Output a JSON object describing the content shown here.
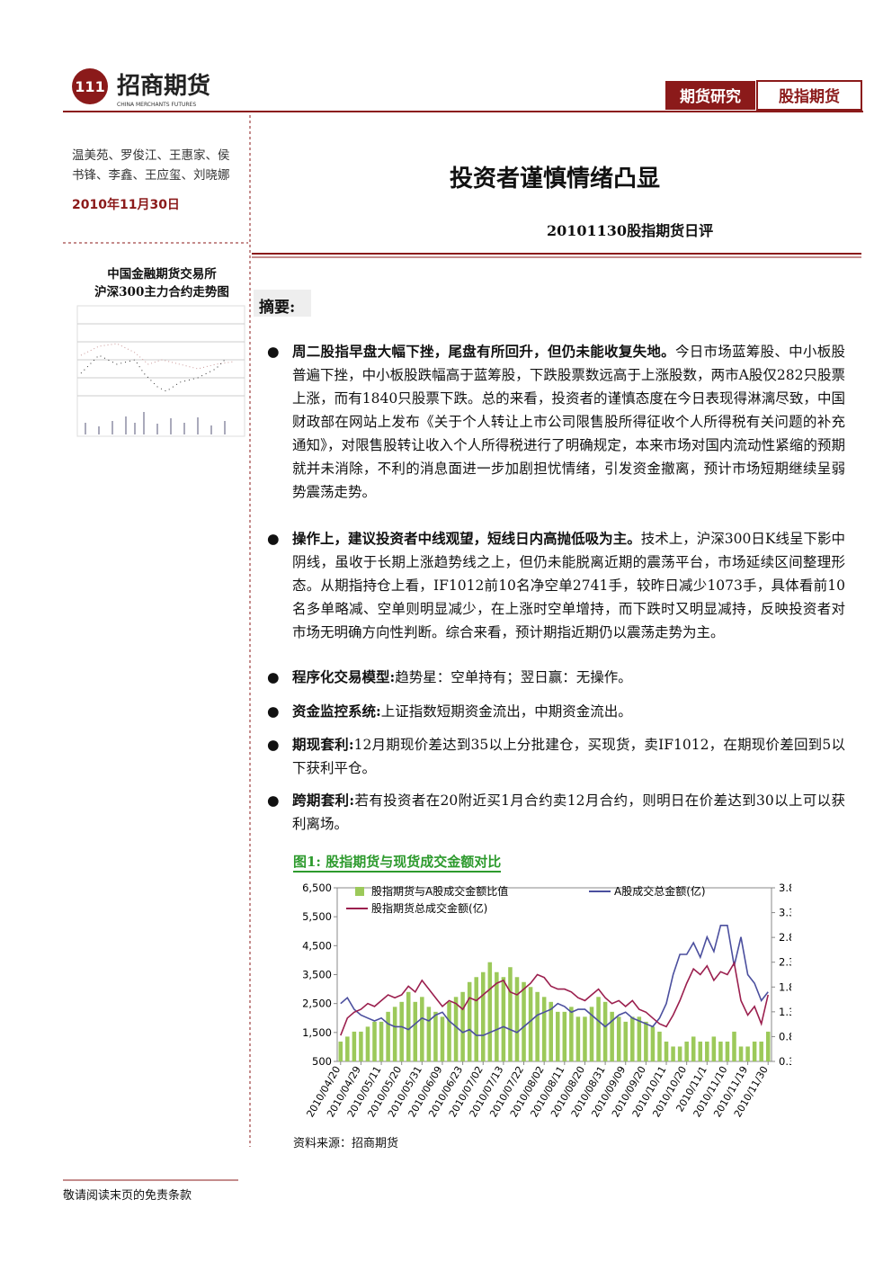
{
  "header": {
    "logo_cn": "招商期货",
    "logo_en": "CHINA MERCHANTS FUTURES",
    "tabs": [
      "期货研究",
      "股指期货"
    ]
  },
  "sidebar": {
    "authors": [
      "温美苑、罗俊江、王惠家、侯",
      "书锋、李鑫、王应玺、刘晓娜"
    ],
    "date": "2010年11月30日",
    "chart_caption": [
      "中国金融期货交易所",
      "沪深300主力合约走势图"
    ]
  },
  "title": "投资者谨慎情绪凸显",
  "subtitle": "20101130股指期货日评",
  "summary_heading": "摘要:",
  "bullets": [
    {
      "bold": "周二股指早盘大幅下挫，尾盘有所回升，但仍未能收复失地。",
      "text": "今日市场蓝筹股、中小板股普遍下挫，中小板股跌幅高于蓝筹股，下跌股票数远高于上涨股数，两市A股仅282只股票上涨，而有1840只股票下跌。总的来看，投资者的谨慎态度在今日表现得淋漓尽致，中国财政部在网站上发布《关于个人转让上市公司限售股所得征收个人所得税有关问题的补充通知》，对限售股转让收入个人所得税进行了明确规定，本来市场对国内流动性紧缩的预期就并未消除，不利的消息面进一步加剧担忧情绪，引发资金撤离，预计市场短期继续呈弱势震荡走势。"
    },
    {
      "bold": "操作上，建议投资者中线观望，短线日内高抛低吸为主。",
      "text": "技术上，沪深300日K线呈下影中阴线，虽收于长期上涨趋势线之上，但仍未能脱离近期的震荡平台，市场延续区间整理形态。从期指持仓上看，IF1012前10名净空单2741手，较昨日减少1073手，具体看前10名多单略减、空单则明显减少，在上涨时空单增持，而下跌时又明显减持，反映投资者对市场无明确方向性判断。综合来看，预计期指近期仍以震荡走势为主。"
    },
    {
      "bold": "程序化交易模型:",
      "text": "趋势星：空单持有；翌日赢：无操作。"
    },
    {
      "bold": "资金监控系统:",
      "text": "上证指数短期资金流出，中期资金流出。"
    },
    {
      "bold": "期现套利:",
      "text": "12月期现价差达到35以上分批建仓，买现货，卖IF1012，在期现价差回到5以下获利平仓。"
    },
    {
      "bold": "跨期套利:",
      "text": "若有投资者在20附近买1月合约卖12月合约，则明日在价差达到30以上可以获利离场。"
    }
  ],
  "figure": {
    "title": "图1: 股指期货与现货成交金额对比",
    "source": "资料来源：招商期货"
  },
  "footer": "敬请阅读末页的免责条款",
  "chart_data": {
    "type": "bar_line",
    "categories": [
      "2010/04/20",
      null,
      null,
      "2010/04/29",
      null,
      null,
      "2010/05/11",
      null,
      null,
      "2010/05/20",
      null,
      null,
      "2010/05/31",
      null,
      null,
      "2010/06/09",
      null,
      null,
      "2010/06/23",
      null,
      null,
      "2010/07/02",
      null,
      null,
      "2010/07/13",
      null,
      null,
      "2010/07/22",
      null,
      null,
      "2010/08/02",
      null,
      null,
      "2010/08/11",
      null,
      null,
      "2010/08/20",
      null,
      null,
      "2010/08/31",
      null,
      null,
      "2010/09/09",
      null,
      null,
      "2010/09/20",
      null,
      null,
      "2010/10/11",
      null,
      null,
      "2010/10/20",
      null,
      null,
      "2010/11/1",
      null,
      null,
      "2010/11/10",
      null,
      null,
      "2010/11/19",
      null,
      null,
      "2010/11/30"
    ],
    "series": [
      {
        "name": "股指期货与A股成交金额比值",
        "type": "bar",
        "axis": "y2",
        "color": "#9cc95a",
        "values": [
          0.7,
          0.8,
          0.9,
          0.9,
          1.0,
          1.1,
          1.1,
          1.3,
          1.4,
          1.5,
          1.7,
          1.5,
          1.6,
          1.4,
          1.3,
          1.2,
          1.5,
          1.6,
          1.7,
          1.9,
          2.0,
          2.1,
          2.3,
          2.1,
          2.0,
          2.2,
          2.0,
          1.9,
          1.8,
          1.7,
          1.6,
          1.5,
          1.3,
          1.3,
          1.4,
          1.2,
          1.2,
          1.4,
          1.6,
          1.5,
          1.3,
          1.2,
          1.1,
          1.2,
          1.2,
          1.1,
          1.0,
          0.9,
          0.7,
          0.6,
          0.6,
          0.7,
          0.8,
          0.7,
          0.7,
          0.8,
          0.7,
          0.7,
          0.9,
          0.6,
          0.6,
          0.7,
          0.7,
          0.9
        ]
      },
      {
        "name": "A股成交总金额(亿)",
        "type": "line",
        "color": "#4b4f9e",
        "values": [
          2500,
          2700,
          2300,
          2100,
          2000,
          1900,
          2000,
          1800,
          1700,
          1700,
          1600,
          1800,
          2000,
          1900,
          2100,
          2200,
          1900,
          1700,
          1500,
          1600,
          1400,
          1400,
          1500,
          1600,
          1700,
          1600,
          1500,
          1700,
          1900,
          2100,
          2200,
          2300,
          2500,
          2400,
          2200,
          2300,
          2300,
          2100,
          1900,
          1700,
          1900,
          2100,
          2200,
          2000,
          1900,
          1800,
          1700,
          2000,
          2500,
          3500,
          4200,
          4200,
          4600,
          4100,
          4800,
          4300,
          5200,
          5200,
          3800,
          4800,
          3500,
          3200,
          2600,
          2900
        ]
      },
      {
        "name": "股指期货总成交金额(亿)",
        "type": "line",
        "color": "#9b1f4e",
        "values": [
          1400,
          2000,
          2200,
          2300,
          2500,
          2400,
          2600,
          2800,
          2700,
          2800,
          3100,
          2900,
          3300,
          3000,
          2700,
          2400,
          2600,
          2500,
          2300,
          2700,
          2600,
          2800,
          3000,
          3200,
          3300,
          2900,
          2800,
          3000,
          3200,
          3500,
          3400,
          3100,
          3000,
          3000,
          2900,
          2700,
          2600,
          2800,
          3000,
          2700,
          2500,
          2600,
          2400,
          2600,
          2300,
          2200,
          2000,
          1800,
          1700,
          2100,
          2600,
          3200,
          3700,
          3500,
          3800,
          3300,
          3600,
          3500,
          3900,
          2600,
          2100,
          2400,
          1800,
          2800
        ]
      }
    ],
    "ylim": [
      500,
      6500
    ],
    "yticks": [
      500,
      {
        "value": 1500,
        "label": "1,500"
      },
      {
        "value": 2500,
        "label": "2,500"
      },
      {
        "value": 3500,
        "label": "3,500"
      },
      {
        "value": 4500,
        "label": "4,500"
      },
      {
        "value": 5500,
        "label": "5,500"
      },
      {
        "value": 6500,
        "label": "6,500"
      }
    ],
    "y2lim": [
      0.3,
      3.8
    ],
    "y2ticks": [
      0.3,
      0.8,
      1.3,
      1.8,
      2.3,
      2.8,
      3.3,
      3.8
    ]
  }
}
